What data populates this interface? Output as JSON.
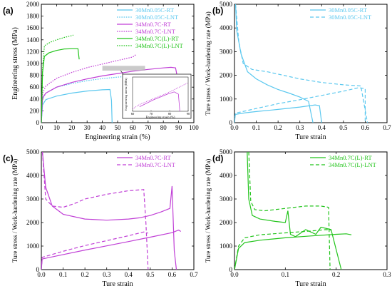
{
  "chart_data": [
    {
      "type": "line",
      "panel": "(a)",
      "xlabel": "Engineering strain (%)",
      "ylabel": "Engineering stress (MPa)",
      "xlim": [
        0,
        100
      ],
      "ylim": [
        0,
        2000
      ],
      "xticks": [
        0,
        10,
        20,
        30,
        40,
        50,
        60,
        70,
        80,
        90,
        100
      ],
      "yticks": [
        0,
        200,
        400,
        600,
        800,
        1000,
        1200,
        1400,
        1600,
        1800,
        2000
      ],
      "legend_position": "top-right",
      "series": [
        {
          "name": "30Mn0.05C-RT",
          "color": "#5bc8ef",
          "dash": "solid",
          "points": [
            [
              0,
              0
            ],
            [
              0.8,
              300
            ],
            [
              3,
              390
            ],
            [
              10,
              450
            ],
            [
              20,
              500
            ],
            [
              30,
              535
            ],
            [
              40,
              555
            ],
            [
              45,
              560
            ],
            [
              46,
              380
            ],
            [
              46.4,
              0
            ]
          ]
        },
        {
          "name": "30Mn0.05C-LNT",
          "color": "#5bc8ef",
          "dash": "dotted",
          "points": [
            [
              0,
              0
            ],
            [
              0.8,
              400
            ],
            [
              3,
              500
            ],
            [
              10,
              600
            ],
            [
              20,
              660
            ],
            [
              30,
              710
            ],
            [
              40,
              745
            ],
            [
              50,
              770
            ],
            [
              56,
              780
            ],
            [
              57,
              600
            ]
          ]
        },
        {
          "name": "34Mn0.7C-RT",
          "color": "#c03fd6",
          "dash": "solid",
          "points": [
            [
              0,
              0
            ],
            [
              0.8,
              420
            ],
            [
              3,
              500
            ],
            [
              10,
              600
            ],
            [
              20,
              680
            ],
            [
              30,
              740
            ],
            [
              40,
              790
            ],
            [
              50,
              830
            ],
            [
              60,
              870
            ],
            [
              70,
              900
            ],
            [
              80,
              925
            ],
            [
              85,
              935
            ],
            [
              88,
              925
            ],
            [
              89,
              790
            ]
          ]
        },
        {
          "name": "34Mn0.7C-LNT",
          "color": "#c03fd6",
          "dash": "dotted",
          "points": [
            [
              0,
              0
            ],
            [
              0.8,
              500
            ],
            [
              3,
              620
            ],
            [
              10,
              750
            ],
            [
              20,
              850
            ],
            [
              30,
              930
            ],
            [
              40,
              990
            ],
            [
              50,
              1050
            ],
            [
              60,
              1110
            ],
            [
              62,
              1150
            ]
          ]
        },
        {
          "name": "34Mn0.7C(L)-RT",
          "color": "#22c41b",
          "dash": "solid",
          "points": [
            [
              0,
              0
            ],
            [
              0.8,
              850
            ],
            [
              2,
              1120
            ],
            [
              5,
              1180
            ],
            [
              10,
              1220
            ],
            [
              15,
              1245
            ],
            [
              20,
              1250
            ],
            [
              24,
              1250
            ],
            [
              24.8,
              1070
            ]
          ]
        },
        {
          "name": "34Mn0.7C(L)-LNT",
          "color": "#22c41b",
          "dash": "dotted",
          "points": [
            [
              0,
              0
            ],
            [
              0.8,
              900
            ],
            [
              2,
              1300
            ],
            [
              6,
              1360
            ],
            [
              10,
              1400
            ],
            [
              15,
              1440
            ],
            [
              20,
              1470
            ],
            [
              21,
              1480
            ]
          ]
        }
      ],
      "inset": {
        "xticks": [
          "60",
          "70",
          "80",
          "90"
        ],
        "xlabel": "Engineering strain (%)",
        "ylabel": "Engineering stress (MPa)"
      }
    },
    {
      "type": "line",
      "panel": "(b)",
      "xlabel": "Ture strain",
      "ylabel": "Ture stress / Work-hardening rate (MPa)",
      "xlim": [
        0,
        0.7
      ],
      "ylim": [
        0,
        5000
      ],
      "xticks": [
        "0.0",
        "0.1",
        "0.2",
        "0.3",
        "0.4",
        "0.5",
        "0.6",
        "0.7"
      ],
      "yticks": [
        0,
        1000,
        2000,
        3000,
        4000,
        5000
      ],
      "legend_position": "top-right",
      "series": [
        {
          "name": "30Mn0.05C-RT",
          "color": "#5bc8ef",
          "dash": "solid",
          "stress": [
            [
              0,
              0
            ],
            [
              0.004,
              350
            ],
            [
              0.05,
              420
            ],
            [
              0.1,
              470
            ],
            [
              0.2,
              560
            ],
            [
              0.3,
              660
            ],
            [
              0.37,
              750
            ],
            [
              0.39,
              720
            ],
            [
              0.4,
              0
            ]
          ],
          "whr": [
            [
              0.005,
              5000
            ],
            [
              0.01,
              3900
            ],
            [
              0.03,
              2900
            ],
            [
              0.06,
              2150
            ],
            [
              0.1,
              1850
            ],
            [
              0.15,
              1600
            ],
            [
              0.2,
              1400
            ],
            [
              0.25,
              1250
            ],
            [
              0.3,
              1080
            ],
            [
              0.34,
              900
            ],
            [
              0.36,
              0
            ]
          ]
        },
        {
          "name": "30Mn0.05C-LNT",
          "color": "#5bc8ef",
          "dash": "dashed",
          "stress": [
            [
              0,
              0
            ],
            [
              0.004,
              400
            ],
            [
              0.1,
              600
            ],
            [
              0.2,
              800
            ],
            [
              0.3,
              970
            ],
            [
              0.4,
              1150
            ],
            [
              0.5,
              1330
            ],
            [
              0.57,
              1480
            ],
            [
              0.6,
              1440
            ],
            [
              0.6,
              0
            ]
          ],
          "whr": [
            [
              0.005,
              5000
            ],
            [
              0.02,
              3400
            ],
            [
              0.04,
              2500
            ],
            [
              0.08,
              2250
            ],
            [
              0.15,
              2150
            ],
            [
              0.2,
              2050
            ],
            [
              0.3,
              1850
            ],
            [
              0.4,
              1700
            ],
            [
              0.5,
              1600
            ],
            [
              0.58,
              1550
            ],
            [
              0.61,
              0
            ]
          ]
        }
      ]
    },
    {
      "type": "line",
      "panel": "(c)",
      "xlabel": "Ture strain",
      "ylabel": "Ture stress / Work-hardening rate (MPa)",
      "xlim": [
        0,
        0.7
      ],
      "ylim": [
        0,
        5000
      ],
      "xticks": [
        "0.0",
        "0.1",
        "0.2",
        "0.3",
        "0.4",
        "0.5",
        "0.6",
        "0.7"
      ],
      "yticks": [
        0,
        1000,
        2000,
        3000,
        4000,
        5000
      ],
      "legend_position": "top-right",
      "series": [
        {
          "name": "34Mn0.7C-RT",
          "color": "#c03fd6",
          "dash": "solid",
          "stress": [
            [
              0,
              0
            ],
            [
              0.004,
              450
            ],
            [
              0.1,
              640
            ],
            [
              0.2,
              830
            ],
            [
              0.3,
              1010
            ],
            [
              0.4,
              1190
            ],
            [
              0.5,
              1380
            ],
            [
              0.6,
              1570
            ],
            [
              0.63,
              1680
            ],
            [
              0.64,
              1620
            ]
          ],
          "whr": [
            [
              0.005,
              5000
            ],
            [
              0.02,
              3500
            ],
            [
              0.05,
              2700
            ],
            [
              0.1,
              2350
            ],
            [
              0.2,
              2150
            ],
            [
              0.3,
              2100
            ],
            [
              0.4,
              2150
            ],
            [
              0.45,
              2200
            ],
            [
              0.5,
              2300
            ],
            [
              0.55,
              2450
            ],
            [
              0.59,
              2600
            ],
            [
              0.6,
              3550
            ],
            [
              0.61,
              800
            ],
            [
              0.62,
              0
            ]
          ]
        },
        {
          "name": "34Mn0.7C-LNT",
          "color": "#c03fd6",
          "dash": "dashed",
          "stress": [
            [
              0,
              0
            ],
            [
              0.004,
              520
            ],
            [
              0.1,
              780
            ],
            [
              0.2,
              1020
            ],
            [
              0.3,
              1230
            ],
            [
              0.4,
              1440
            ],
            [
              0.47,
              1600
            ],
            [
              0.49,
              1550
            ]
          ],
          "whr": [
            [
              0.005,
              5000
            ],
            [
              0.02,
              3000
            ],
            [
              0.05,
              2700
            ],
            [
              0.1,
              2650
            ],
            [
              0.15,
              2800
            ],
            [
              0.2,
              3000
            ],
            [
              0.3,
              3200
            ],
            [
              0.4,
              3350
            ],
            [
              0.47,
              3400
            ],
            [
              0.48,
              2000
            ],
            [
              0.49,
              0
            ]
          ]
        }
      ]
    },
    {
      "type": "line",
      "panel": "(d)",
      "xlabel": "Ture strain",
      "ylabel": "Ture stress / Work-hardening rate (MPa)",
      "xlim": [
        0,
        0.3
      ],
      "ylim": [
        0,
        5000
      ],
      "xticks": [
        "0.0",
        "0.1",
        "0.2",
        "0.3"
      ],
      "yticks": [
        0,
        1000,
        2000,
        3000,
        4000,
        5000
      ],
      "legend_position": "top-right",
      "series": [
        {
          "name": "34Mn0.7C(L)-RT",
          "color": "#22c41b",
          "dash": "solid",
          "stress": [
            [
              0,
              0
            ],
            [
              0.008,
              900
            ],
            [
              0.02,
              1150
            ],
            [
              0.05,
              1250
            ],
            [
              0.1,
              1350
            ],
            [
              0.15,
              1430
            ],
            [
              0.2,
              1500
            ],
            [
              0.22,
              1520
            ],
            [
              0.23,
              1480
            ]
          ],
          "whr": [
            [
              0.025,
              5000
            ],
            [
              0.028,
              3000
            ],
            [
              0.035,
              2300
            ],
            [
              0.05,
              2150
            ],
            [
              0.08,
              2050
            ],
            [
              0.1,
              2000
            ],
            [
              0.105,
              2500
            ],
            [
              0.11,
              1500
            ],
            [
              0.12,
              1400
            ],
            [
              0.14,
              1700
            ],
            [
              0.16,
              1500
            ],
            [
              0.17,
              1800
            ],
            [
              0.19,
              1700
            ],
            [
              0.21,
              0
            ]
          ]
        },
        {
          "name": "34Mn0.7C(L)-LNT",
          "color": "#22c41b",
          "dash": "dashed",
          "stress": [
            [
              0,
              0
            ],
            [
              0.008,
              1000
            ],
            [
              0.02,
              1350
            ],
            [
              0.05,
              1480
            ],
            [
              0.1,
              1560
            ],
            [
              0.15,
              1640
            ],
            [
              0.18,
              1700
            ],
            [
              0.19,
              1680
            ]
          ],
          "whr": [
            [
              0.028,
              5000
            ],
            [
              0.032,
              2900
            ],
            [
              0.04,
              2550
            ],
            [
              0.06,
              2500
            ],
            [
              0.1,
              2600
            ],
            [
              0.14,
              2700
            ],
            [
              0.17,
              2700
            ],
            [
              0.185,
              2650
            ],
            [
              0.188,
              0
            ]
          ]
        }
      ]
    }
  ]
}
